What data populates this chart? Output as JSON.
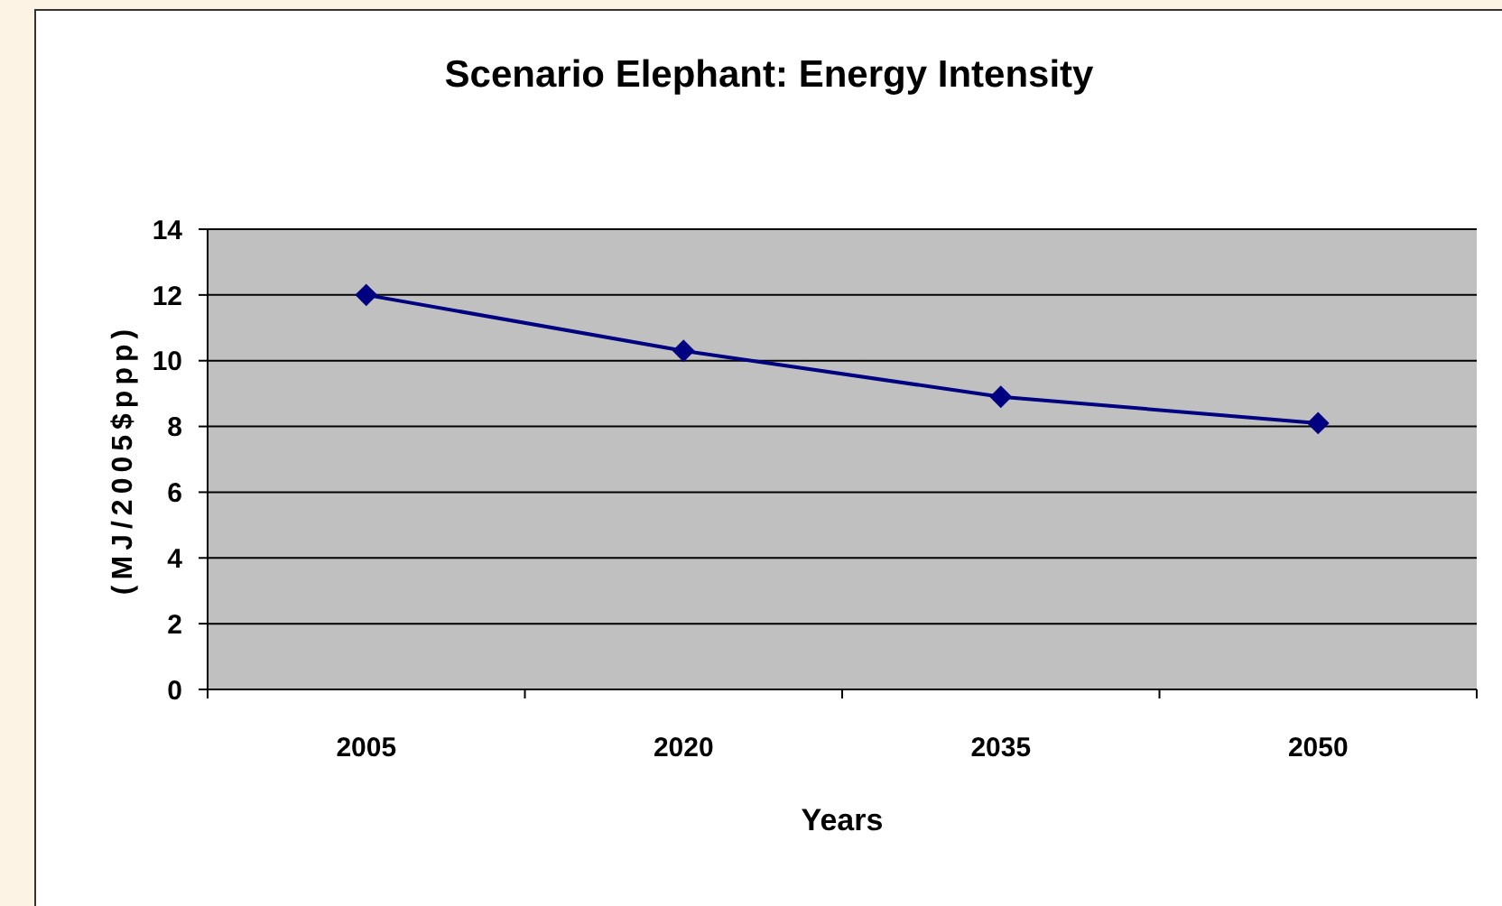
{
  "chart_data": {
    "type": "line",
    "title": "Scenario Elephant: Energy Intensity",
    "xlabel": "Years",
    "ylabel": "(MJ/2005$ppp)",
    "categories": [
      "2005",
      "2020",
      "2035",
      "2050"
    ],
    "series": [
      {
        "color": "#000080",
        "values": [
          12,
          10.3,
          8.9,
          8.1
        ]
      }
    ],
    "ylim": [
      0,
      14
    ],
    "yticks": [
      0,
      2,
      4,
      6,
      8,
      10,
      12,
      14
    ],
    "grid": "y",
    "marker": "diamond",
    "line_style": "solid"
  }
}
